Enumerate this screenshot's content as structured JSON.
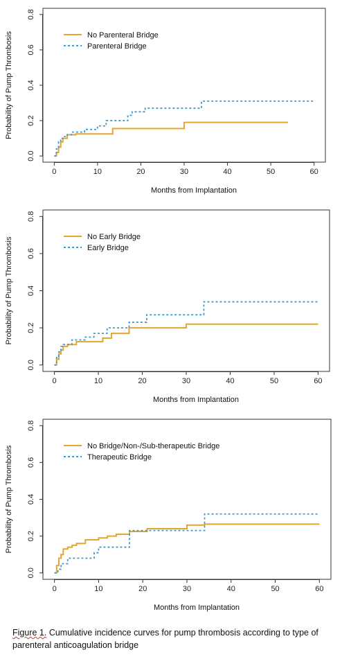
{
  "colors": {
    "no_bridge": "#e3a52c",
    "bridge": "#3d9bd1"
  },
  "chart_data": [
    {
      "type": "line",
      "step": true,
      "xlabel": "Months from Implantation",
      "ylabel": "Probability of Pump Thrombosis",
      "xlim": [
        0,
        60
      ],
      "ylim": [
        0,
        0.8
      ],
      "xticks": [
        "0",
        "10",
        "20",
        "30",
        "40",
        "50",
        "60"
      ],
      "yticks": [
        "0.0",
        "0.2",
        "0.4",
        "0.6",
        "0.8"
      ],
      "legend_position": "top-left",
      "series": [
        {
          "name": "No Parenteral Bridge",
          "style": "solid",
          "x": [
            0,
            0.5,
            1,
            1.5,
            2,
            3,
            5,
            13.5,
            30,
            54
          ],
          "y": [
            0,
            0.02,
            0.05,
            0.08,
            0.1,
            0.12,
            0.125,
            0.155,
            0.19,
            0.19
          ]
        },
        {
          "name": "Parenteral Bridge",
          "style": "dashed",
          "x": [
            0,
            0.5,
            1,
            1.5,
            2,
            3,
            4,
            7,
            10,
            12,
            17,
            18,
            21,
            34,
            60
          ],
          "y": [
            0,
            0.04,
            0.08,
            0.1,
            0.11,
            0.12,
            0.135,
            0.15,
            0.17,
            0.2,
            0.23,
            0.25,
            0.27,
            0.31,
            0.31
          ]
        }
      ]
    },
    {
      "type": "line",
      "step": true,
      "xlabel": "Months from Implantation",
      "ylabel": "Probability of Pump Thrombosis",
      "xlim": [
        0,
        60
      ],
      "ylim": [
        0,
        0.8
      ],
      "xticks": [
        "0",
        "10",
        "20",
        "30",
        "40",
        "50",
        "60"
      ],
      "yticks": [
        "0.0",
        "0.2",
        "0.4",
        "0.6",
        "0.8"
      ],
      "legend_position": "top-left",
      "series": [
        {
          "name": "No Early Bridge",
          "style": "solid",
          "x": [
            0,
            0.5,
            1,
            1.5,
            2,
            3,
            5,
            11,
            13,
            17,
            30,
            60
          ],
          "y": [
            0,
            0.03,
            0.06,
            0.08,
            0.1,
            0.11,
            0.125,
            0.145,
            0.17,
            0.2,
            0.22,
            0.22
          ]
        },
        {
          "name": "Early Bridge",
          "style": "dashed",
          "x": [
            0,
            0.5,
            1,
            1.5,
            2,
            4,
            7,
            9,
            12,
            17,
            21,
            34,
            60
          ],
          "y": [
            0,
            0.04,
            0.07,
            0.1,
            0.11,
            0.135,
            0.15,
            0.17,
            0.2,
            0.23,
            0.27,
            0.34,
            0.34
          ]
        }
      ]
    },
    {
      "type": "line",
      "step": true,
      "xlabel": "Months from Implantation",
      "ylabel": "Probability of Pump Thrombosis",
      "xlim": [
        0,
        60
      ],
      "ylim": [
        0,
        0.8
      ],
      "xticks": [
        "0",
        "10",
        "20",
        "30",
        "40",
        "50",
        "60"
      ],
      "yticks": [
        "0.0",
        "0.2",
        "0.4",
        "0.6",
        "0.8"
      ],
      "legend_position": "top-left",
      "series": [
        {
          "name": "No Bridge/Non-/Sub-therapeutic Bridge",
          "style": "solid",
          "x": [
            0,
            0.5,
            1,
            1.5,
            2,
            3,
            4,
            5,
            7,
            10,
            12,
            14,
            17,
            21,
            30,
            34,
            60
          ],
          "y": [
            0,
            0.04,
            0.08,
            0.1,
            0.13,
            0.14,
            0.15,
            0.16,
            0.18,
            0.19,
            0.2,
            0.21,
            0.225,
            0.24,
            0.26,
            0.265,
            0.265
          ]
        },
        {
          "name": "Therapeutic Bridge",
          "style": "dashed",
          "x": [
            0,
            0.8,
            1.5,
            3,
            9,
            10,
            17,
            34,
            60
          ],
          "y": [
            0,
            0.02,
            0.05,
            0.08,
            0.11,
            0.14,
            0.23,
            0.32,
            0.32
          ]
        }
      ]
    }
  ],
  "caption": {
    "label": "Figure 1.",
    "text": " Cumulative incidence curves for pump thrombosis according to type of parenteral anticoagulation bridge"
  }
}
